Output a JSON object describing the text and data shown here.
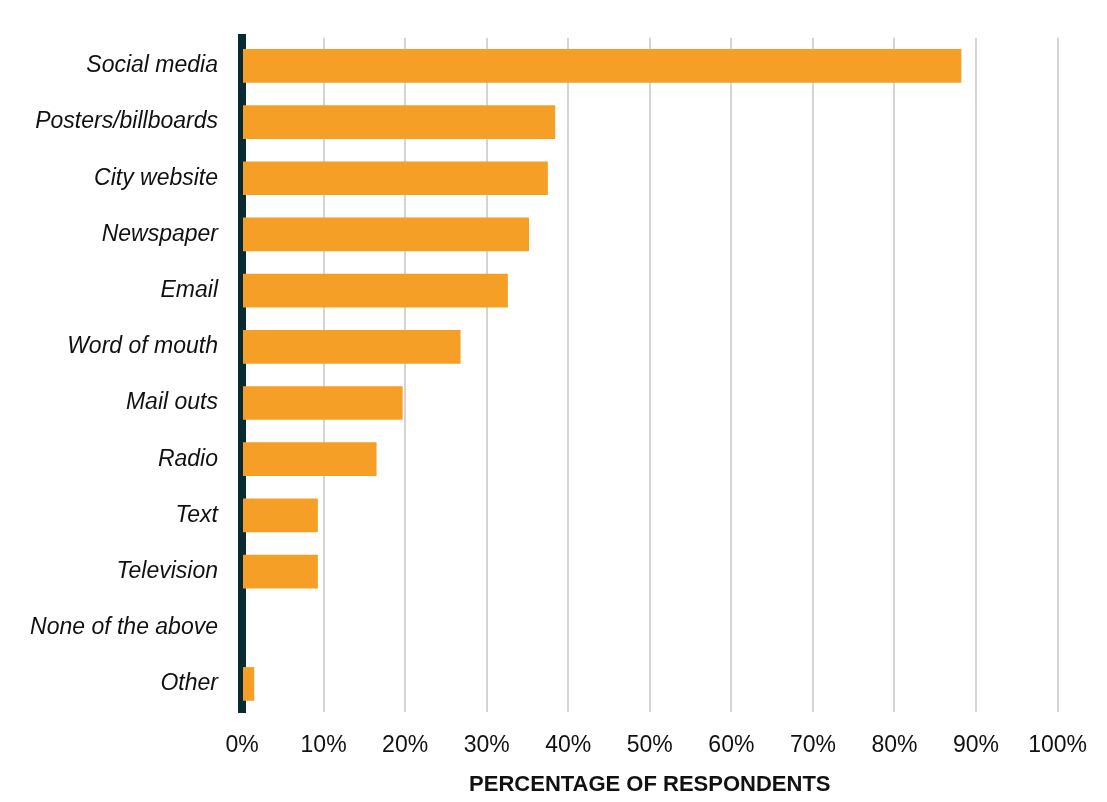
{
  "chart_data": {
    "type": "bar",
    "orientation": "horizontal",
    "xlabel": "PERCENTAGE OF RESPONDENTS",
    "categories": [
      "Social media",
      "Posters/billboards",
      "City website",
      "Newspaper",
      "Email",
      "Word of mouth",
      "Mail outs",
      "Radio",
      "Text",
      "Television",
      "None of the above",
      "Other"
    ],
    "values": [
      88.2,
      38.4,
      37.5,
      35.2,
      32.6,
      26.8,
      19.7,
      16.5,
      9.3,
      9.3,
      0,
      1.5
    ],
    "color": "#f69f27",
    "xlim": [
      0,
      100
    ],
    "xticks": [
      {
        "value": 0,
        "label": "0%"
      },
      {
        "value": 10,
        "label": "10%"
      },
      {
        "value": 20,
        "label": "20%"
      },
      {
        "value": 30,
        "label": "30%"
      },
      {
        "value": 40,
        "label": "40%"
      },
      {
        "value": 50,
        "label": "50%"
      },
      {
        "value": 60,
        "label": "60%"
      },
      {
        "value": 70,
        "label": "70%"
      },
      {
        "value": 80,
        "label": "80%"
      },
      {
        "value": 90,
        "label": "90%"
      },
      {
        "value": 100,
        "label": "100%"
      }
    ],
    "grid": "x"
  }
}
